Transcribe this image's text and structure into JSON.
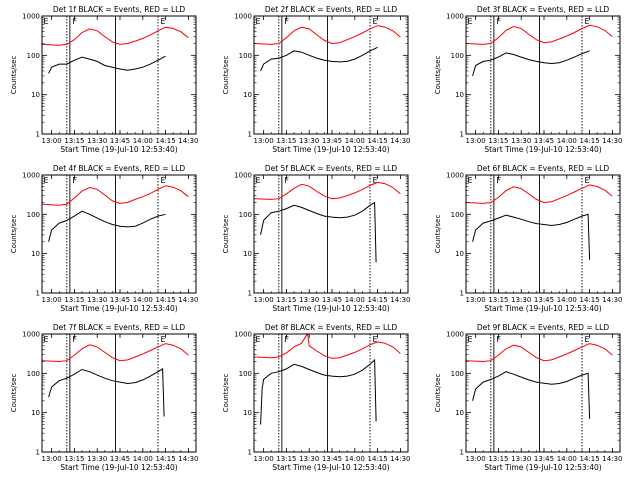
{
  "figure": {
    "xlabel": "Start Time (19-Jul-10 12:53:40)",
    "ylabel": "Counts/sec",
    "x_ticks": [
      "13:00",
      "13:15",
      "13:30",
      "13:45",
      "14:00",
      "14:15",
      "14:30"
    ],
    "y_ticks": [
      "1",
      "10",
      "100",
      "1000"
    ],
    "colors": {
      "events": "#000000",
      "lld": "#ff0000",
      "axes": "#000000",
      "background": "#ffffff"
    }
  },
  "chart_data": [
    {
      "type": "line",
      "title": "Det 1f BLACK = Events, RED = LLD",
      "xlabel": "Start Time (19-Jul-10 12:53:40)",
      "ylabel": "Counts/sec",
      "y_scale": "log",
      "ylim": [
        1,
        1000
      ],
      "x_ticks": [
        "13:00",
        "13:15",
        "13:30",
        "13:45",
        "14:00",
        "14:15",
        "14:30"
      ],
      "markers": [
        "E",
        "F",
        "E"
      ],
      "series": [
        {
          "name": "LLD",
          "color": "#ff0000",
          "x": [
            "12:54",
            "13:05",
            "13:10",
            "13:15",
            "13:20",
            "13:25",
            "13:30",
            "13:35",
            "13:40",
            "13:45",
            "13:50",
            "13:55",
            "14:00",
            "14:05",
            "14:10",
            "14:15",
            "14:20",
            "14:25",
            "14:30"
          ],
          "values": [
            190,
            180,
            190,
            250,
            380,
            470,
            420,
            300,
            220,
            190,
            200,
            230,
            270,
            330,
            420,
            520,
            480,
            400,
            280
          ]
        },
        {
          "name": "Events",
          "color": "#000000",
          "x": [
            "12:58",
            "13:00",
            "13:05",
            "13:10",
            "13:15",
            "13:20",
            "13:25",
            "13:30",
            "13:35",
            "13:40",
            "13:45",
            "13:50",
            "13:55",
            "14:00",
            "14:05",
            "14:10",
            "14:15"
          ],
          "values": [
            35,
            50,
            60,
            60,
            75,
            90,
            80,
            70,
            55,
            50,
            45,
            42,
            45,
            50,
            60,
            75,
            95
          ]
        }
      ]
    },
    {
      "type": "line",
      "title": "Det 2f BLACK = Events, RED = LLD",
      "xlabel": "Start Time (19-Jul-10 12:53:40)",
      "ylabel": "Counts/sec",
      "y_scale": "log",
      "ylim": [
        1,
        1000
      ],
      "x_ticks": [
        "13:00",
        "13:15",
        "13:30",
        "13:45",
        "14:00",
        "14:15",
        "14:30"
      ],
      "markers": [
        "E",
        "F",
        "E"
      ],
      "series": [
        {
          "name": "LLD",
          "color": "#ff0000",
          "x": [
            "12:54",
            "13:05",
            "13:10",
            "13:15",
            "13:20",
            "13:25",
            "13:30",
            "13:35",
            "13:40",
            "13:45",
            "13:50",
            "13:55",
            "14:00",
            "14:05",
            "14:10",
            "14:15",
            "14:20",
            "14:25",
            "14:30"
          ],
          "values": [
            200,
            190,
            200,
            280,
            420,
            520,
            470,
            330,
            240,
            200,
            210,
            250,
            300,
            370,
            470,
            570,
            520,
            420,
            290
          ]
        },
        {
          "name": "Events",
          "color": "#000000",
          "x": [
            "12:58",
            "13:00",
            "13:05",
            "13:10",
            "13:15",
            "13:20",
            "13:25",
            "13:30",
            "13:35",
            "13:40",
            "13:45",
            "13:50",
            "13:55",
            "14:00",
            "14:05",
            "14:10",
            "14:15"
          ],
          "values": [
            40,
            60,
            80,
            85,
            100,
            130,
            120,
            100,
            85,
            75,
            70,
            68,
            70,
            80,
            100,
            130,
            160
          ]
        }
      ]
    },
    {
      "type": "line",
      "title": "Det 3f BLACK = Events, RED = LLD",
      "xlabel": "Start Time (19-Jul-10 12:53:40)",
      "ylabel": "Counts/sec",
      "y_scale": "log",
      "ylim": [
        1,
        1000
      ],
      "x_ticks": [
        "13:00",
        "13:15",
        "13:30",
        "13:45",
        "14:00",
        "14:15",
        "14:30"
      ],
      "markers": [
        "E",
        "F",
        "E"
      ],
      "series": [
        {
          "name": "LLD",
          "color": "#ff0000",
          "x": [
            "12:54",
            "13:05",
            "13:10",
            "13:15",
            "13:20",
            "13:25",
            "13:30",
            "13:35",
            "13:40",
            "13:45",
            "13:50",
            "13:55",
            "14:00",
            "14:05",
            "14:10",
            "14:15",
            "14:20",
            "14:25",
            "14:30"
          ],
          "values": [
            200,
            190,
            200,
            280,
            430,
            540,
            480,
            340,
            250,
            210,
            220,
            260,
            310,
            380,
            480,
            580,
            530,
            430,
            300
          ]
        },
        {
          "name": "Events",
          "color": "#000000",
          "x": [
            "12:58",
            "13:00",
            "13:05",
            "13:10",
            "13:15",
            "13:20",
            "13:25",
            "13:30",
            "13:35",
            "13:40",
            "13:45",
            "13:50",
            "13:55",
            "14:00",
            "14:05",
            "14:10",
            "14:15"
          ],
          "values": [
            30,
            55,
            70,
            75,
            90,
            115,
            105,
            90,
            78,
            70,
            65,
            62,
            65,
            75,
            90,
            110,
            130
          ]
        }
      ]
    },
    {
      "type": "line",
      "title": "Det 4f BLACK = Events, RED = LLD",
      "xlabel": "Start Time (19-Jul-10 12:53:40)",
      "ylabel": "Counts/sec",
      "y_scale": "log",
      "ylim": [
        1,
        1000
      ],
      "x_ticks": [
        "13:00",
        "13:15",
        "13:30",
        "13:45",
        "14:00",
        "14:15",
        "14:30"
      ],
      "markers": [
        "E",
        "F",
        "E"
      ],
      "series": [
        {
          "name": "LLD",
          "color": "#ff0000",
          "x": [
            "12:54",
            "13:05",
            "13:10",
            "13:15",
            "13:20",
            "13:25",
            "13:30",
            "13:35",
            "13:40",
            "13:45",
            "13:50",
            "13:55",
            "14:00",
            "14:05",
            "14:10",
            "14:15",
            "14:20",
            "14:25",
            "14:30"
          ],
          "values": [
            180,
            170,
            180,
            260,
            390,
            480,
            430,
            310,
            220,
            190,
            200,
            240,
            280,
            340,
            430,
            530,
            490,
            400,
            280
          ]
        },
        {
          "name": "Events",
          "color": "#000000",
          "x": [
            "12:58",
            "13:00",
            "13:05",
            "13:10",
            "13:15",
            "13:20",
            "13:25",
            "13:30",
            "13:35",
            "13:40",
            "13:45",
            "13:50",
            "13:55",
            "14:00",
            "14:05",
            "14:10",
            "14:15"
          ],
          "values": [
            20,
            40,
            60,
            70,
            90,
            120,
            100,
            80,
            65,
            55,
            50,
            48,
            50,
            60,
            75,
            90,
            100
          ]
        }
      ]
    },
    {
      "type": "line",
      "title": "Det 5f BLACK = Events, RED = LLD",
      "xlabel": "Start Time (19-Jul-10 12:53:40)",
      "ylabel": "Counts/sec",
      "y_scale": "log",
      "ylim": [
        1,
        1000
      ],
      "x_ticks": [
        "13:00",
        "13:15",
        "13:30",
        "13:45",
        "14:00",
        "14:15",
        "14:30"
      ],
      "markers": [
        "E",
        "F",
        "E"
      ],
      "series": [
        {
          "name": "LLD",
          "color": "#ff0000",
          "x": [
            "12:54",
            "13:05",
            "13:10",
            "13:15",
            "13:20",
            "13:25",
            "13:30",
            "13:35",
            "13:40",
            "13:45",
            "13:50",
            "13:55",
            "14:00",
            "14:05",
            "14:10",
            "14:15",
            "14:20",
            "14:25",
            "14:30"
          ],
          "values": [
            250,
            240,
            250,
            330,
            460,
            580,
            520,
            380,
            290,
            250,
            260,
            300,
            350,
            430,
            540,
            650,
            600,
            480,
            330
          ]
        },
        {
          "name": "Events",
          "color": "#000000",
          "x": [
            "12:58",
            "13:00",
            "13:05",
            "13:10",
            "13:15",
            "13:20",
            "13:25",
            "13:30",
            "13:35",
            "13:40",
            "13:45",
            "13:50",
            "13:55",
            "14:00",
            "14:05",
            "14:10",
            "14:13",
            "14:14"
          ],
          "values": [
            30,
            70,
            110,
            120,
            140,
            170,
            150,
            125,
            105,
            90,
            85,
            82,
            85,
            95,
            120,
            170,
            200,
            6
          ]
        }
      ]
    },
    {
      "type": "line",
      "title": "Det 6f BLACK = Events, RED = LLD",
      "xlabel": "Start Time (19-Jul-10 12:53:40)",
      "ylabel": "Counts/sec",
      "y_scale": "log",
      "ylim": [
        1,
        1000
      ],
      "x_ticks": [
        "13:00",
        "13:15",
        "13:30",
        "13:45",
        "14:00",
        "14:15",
        "14:30"
      ],
      "markers": [
        "E",
        "F",
        "E"
      ],
      "series": [
        {
          "name": "LLD",
          "color": "#ff0000",
          "x": [
            "12:54",
            "13:05",
            "13:10",
            "13:15",
            "13:20",
            "13:25",
            "13:30",
            "13:35",
            "13:40",
            "13:45",
            "13:50",
            "13:55",
            "14:00",
            "14:05",
            "14:10",
            "14:15",
            "14:20",
            "14:25",
            "14:30"
          ],
          "values": [
            200,
            190,
            200,
            270,
            400,
            500,
            450,
            330,
            240,
            200,
            210,
            250,
            300,
            370,
            460,
            560,
            510,
            410,
            290
          ]
        },
        {
          "name": "Events",
          "color": "#000000",
          "x": [
            "12:58",
            "13:00",
            "13:05",
            "13:10",
            "13:15",
            "13:20",
            "13:25",
            "13:30",
            "13:35",
            "13:40",
            "13:45",
            "13:50",
            "13:55",
            "14:00",
            "14:05",
            "14:10",
            "14:14",
            "14:15"
          ],
          "values": [
            20,
            40,
            60,
            68,
            80,
            95,
            85,
            75,
            65,
            58,
            55,
            52,
            55,
            62,
            75,
            90,
            100,
            7
          ]
        }
      ]
    },
    {
      "type": "line",
      "title": "Det 7f BLACK = Events, RED = LLD",
      "xlabel": "Start Time (19-Jul-10 12:53:40)",
      "ylabel": "Counts/sec",
      "y_scale": "log",
      "ylim": [
        1,
        1000
      ],
      "x_ticks": [
        "13:00",
        "13:15",
        "13:30",
        "13:45",
        "14:00",
        "14:15",
        "14:30"
      ],
      "markers": [
        "E",
        "F",
        "E"
      ],
      "series": [
        {
          "name": "LLD",
          "color": "#ff0000",
          "x": [
            "12:54",
            "13:05",
            "13:10",
            "13:15",
            "13:20",
            "13:25",
            "13:30",
            "13:35",
            "13:40",
            "13:45",
            "13:50",
            "13:55",
            "14:00",
            "14:05",
            "14:10",
            "14:15",
            "14:20",
            "14:25",
            "14:30"
          ],
          "values": [
            210,
            200,
            210,
            290,
            420,
            530,
            470,
            340,
            250,
            210,
            220,
            260,
            310,
            380,
            470,
            570,
            520,
            420,
            290
          ]
        },
        {
          "name": "Events",
          "color": "#000000",
          "x": [
            "12:58",
            "13:00",
            "13:05",
            "13:10",
            "13:15",
            "13:20",
            "13:25",
            "13:30",
            "13:35",
            "13:40",
            "13:45",
            "13:50",
            "13:55",
            "14:00",
            "14:05",
            "14:10",
            "14:13",
            "14:14"
          ],
          "values": [
            25,
            45,
            65,
            75,
            95,
            125,
            110,
            90,
            75,
            65,
            60,
            55,
            58,
            68,
            85,
            110,
            130,
            8
          ]
        }
      ]
    },
    {
      "type": "line",
      "title": "Det 8f BLACK = Events, RED = LLD",
      "xlabel": "Start Time (19-Jul-10 12:53:40)",
      "ylabel": "Counts/sec",
      "y_scale": "log",
      "ylim": [
        1,
        1000
      ],
      "x_ticks": [
        "13:00",
        "13:15",
        "13:30",
        "13:45",
        "14:00",
        "14:15",
        "14:30"
      ],
      "markers": [
        "E",
        "F",
        "E"
      ],
      "series": [
        {
          "name": "LLD",
          "color": "#ff0000",
          "x": [
            "12:54",
            "13:05",
            "13:10",
            "13:15",
            "13:20",
            "13:25",
            "13:28",
            "13:29",
            "13:30",
            "13:35",
            "13:40",
            "13:45",
            "13:50",
            "13:55",
            "14:00",
            "14:05",
            "14:10",
            "14:15",
            "14:20",
            "14:25",
            "14:30"
          ],
          "values": [
            260,
            250,
            260,
            330,
            470,
            580,
            900,
            1000,
            500,
            370,
            280,
            240,
            250,
            290,
            340,
            420,
            530,
            630,
            580,
            470,
            320
          ]
        },
        {
          "name": "Events",
          "color": "#000000",
          "x": [
            "12:58",
            "12:59",
            "13:00",
            "13:05",
            "13:10",
            "13:15",
            "13:20",
            "13:25",
            "13:30",
            "13:35",
            "13:40",
            "13:45",
            "13:50",
            "13:55",
            "14:00",
            "14:05",
            "14:10",
            "14:13",
            "14:14"
          ],
          "values": [
            5,
            40,
            70,
            100,
            110,
            130,
            170,
            150,
            125,
            105,
            90,
            85,
            82,
            85,
            95,
            120,
            170,
            220,
            6
          ]
        }
      ]
    },
    {
      "type": "line",
      "title": "Det 9f BLACK = Events, RED = LLD",
      "xlabel": "Start Time (19-Jul-10 12:53:40)",
      "ylabel": "Counts/sec",
      "y_scale": "log",
      "ylim": [
        1,
        1000
      ],
      "x_ticks": [
        "13:00",
        "13:15",
        "13:30",
        "13:45",
        "14:00",
        "14:15",
        "14:30"
      ],
      "markers": [
        "E",
        "F",
        "E"
      ],
      "series": [
        {
          "name": "LLD",
          "color": "#ff0000",
          "x": [
            "12:54",
            "13:05",
            "13:10",
            "13:15",
            "13:20",
            "13:25",
            "13:30",
            "13:35",
            "13:40",
            "13:45",
            "13:50",
            "13:55",
            "14:00",
            "14:05",
            "14:10",
            "14:15",
            "14:20",
            "14:25",
            "14:30"
          ],
          "values": [
            210,
            200,
            210,
            290,
            420,
            520,
            470,
            340,
            250,
            210,
            220,
            260,
            310,
            380,
            470,
            570,
            520,
            420,
            290
          ]
        },
        {
          "name": "Events",
          "color": "#000000",
          "x": [
            "12:58",
            "13:00",
            "13:05",
            "13:10",
            "13:15",
            "13:20",
            "13:25",
            "13:30",
            "13:35",
            "13:40",
            "13:45",
            "13:50",
            "13:55",
            "14:00",
            "14:05",
            "14:10",
            "14:14",
            "14:15"
          ],
          "values": [
            20,
            40,
            60,
            70,
            85,
            110,
            95,
            80,
            68,
            60,
            56,
            53,
            55,
            62,
            75,
            90,
            100,
            7
          ]
        }
      ]
    }
  ]
}
